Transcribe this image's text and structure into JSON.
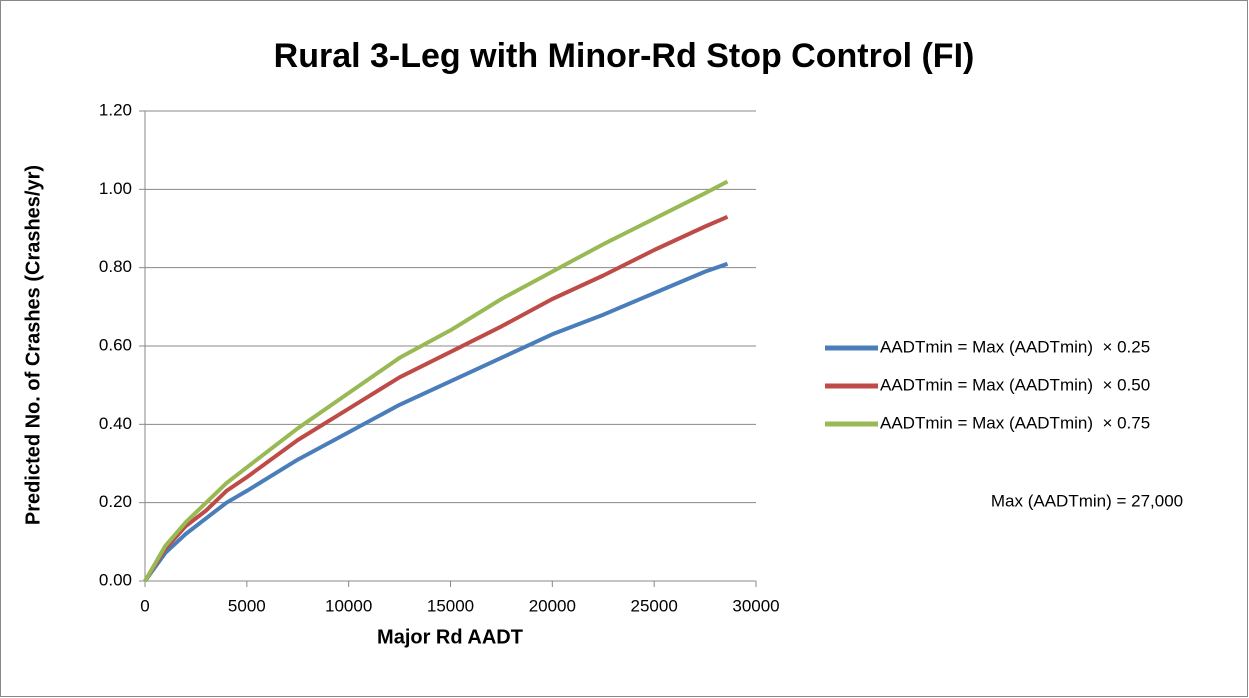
{
  "chart_data": {
    "type": "line",
    "title": "Rural 3-Leg with Minor-Rd Stop Control (FI)",
    "x_label": "Major Rd AADT",
    "y_label": "Predicted No. of Crashes (Crashes/yr)",
    "x": [
      0,
      1000,
      2000,
      3000,
      4000,
      5000,
      7500,
      10000,
      12500,
      15000,
      17500,
      20000,
      22500,
      25000,
      27500,
      28600
    ],
    "series": [
      {
        "name": "AADTmin = Max (AADTmin)  × 0.25",
        "color": "#4a7ebb",
        "values": [
          0,
          0.072,
          0.12,
          0.16,
          0.2,
          0.23,
          0.31,
          0.38,
          0.45,
          0.51,
          0.57,
          0.63,
          0.68,
          0.735,
          0.79,
          0.81
        ]
      },
      {
        "name": "AADTmin = Max (AADTmin)  × 0.50",
        "color": "#be4b48",
        "values": [
          0,
          0.083,
          0.14,
          0.18,
          0.23,
          0.265,
          0.36,
          0.44,
          0.52,
          0.585,
          0.65,
          0.72,
          0.78,
          0.845,
          0.905,
          0.93
        ]
      },
      {
        "name": "AADTmin = Max (AADTmin)  × 0.75",
        "color": "#98b954",
        "values": [
          0,
          0.09,
          0.15,
          0.2,
          0.25,
          0.29,
          0.39,
          0.48,
          0.57,
          0.64,
          0.72,
          0.79,
          0.86,
          0.925,
          0.99,
          1.02
        ]
      }
    ],
    "annotation": "Max (AADTmin) = 27,000",
    "xlim": [
      0,
      30000
    ],
    "xticks": [
      0,
      5000,
      10000,
      15000,
      20000,
      25000,
      30000
    ],
    "ylim": [
      0,
      1.2
    ],
    "yticks": [
      {
        "value": 0,
        "label": "0.00"
      },
      {
        "value": 0.2,
        "label": "0.20"
      },
      {
        "value": 0.4,
        "label": "0.40"
      },
      {
        "value": 0.6,
        "label": "0.60"
      },
      {
        "value": 0.8,
        "label": "0.80"
      },
      {
        "value": 1.0,
        "label": "1.00"
      },
      {
        "value": 1.2,
        "label": "1.20"
      }
    ],
    "grid": true,
    "legend": "right"
  }
}
